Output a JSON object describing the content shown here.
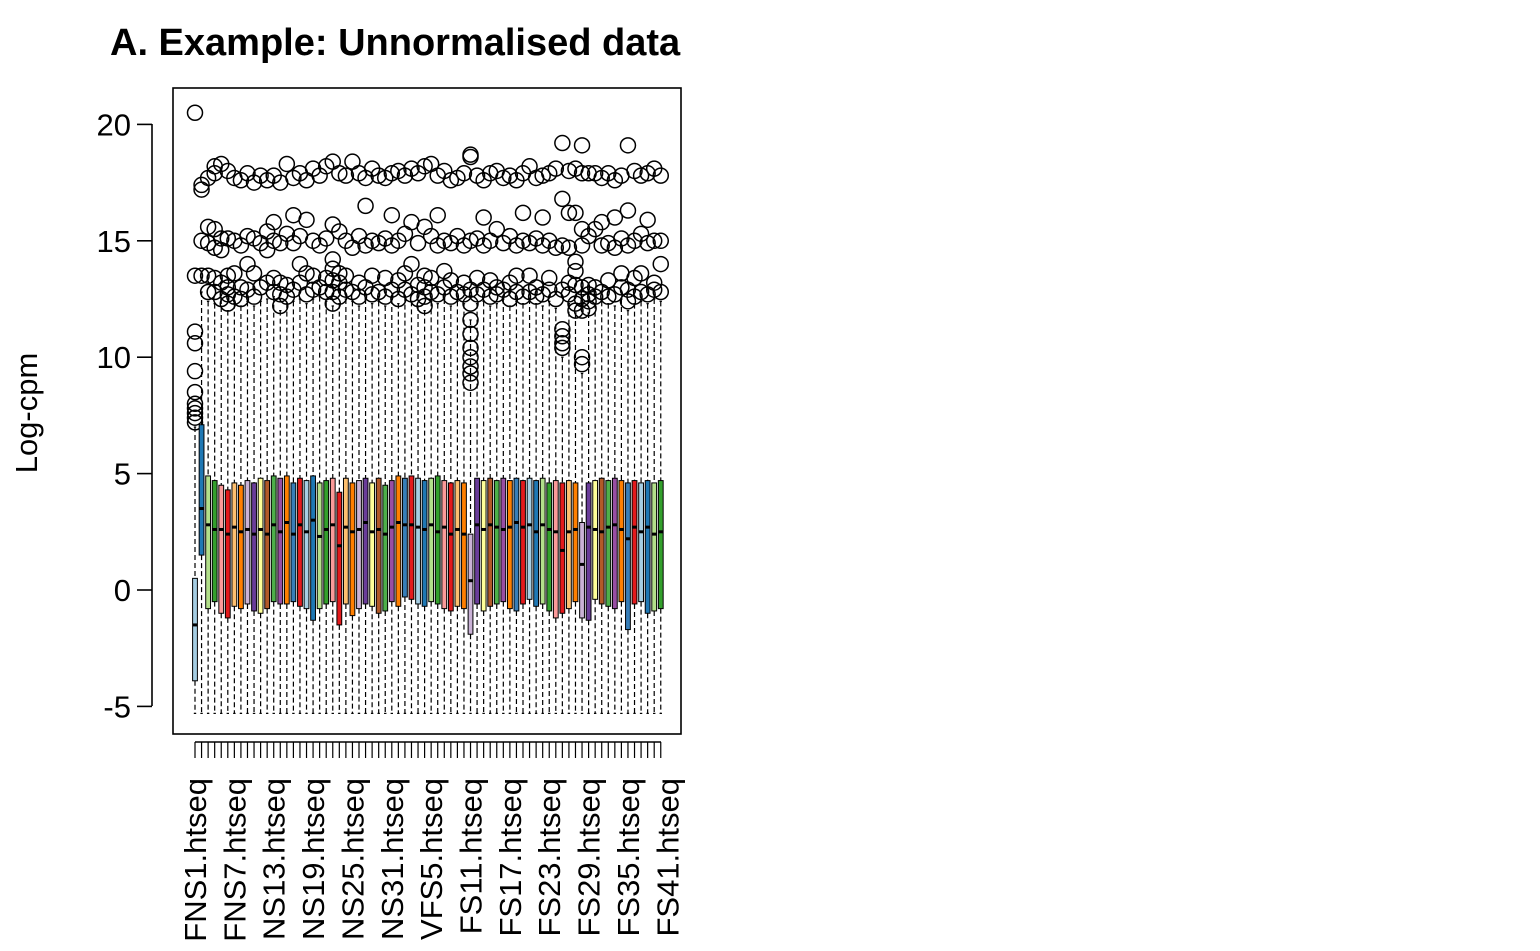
{
  "chart_data": {
    "type": "box",
    "title": "A. Example: Unnormalised data",
    "ylabel": "Log-cpm",
    "xlabel": "",
    "ylim": [
      -6.2,
      21.5
    ],
    "yticks": [
      -5,
      0,
      5,
      10,
      15,
      20
    ],
    "grid": false,
    "legend": "none",
    "visible_xtick_labels": [
      "FNS1.htseq",
      "FNS7.htseq",
      "NS13.htseq",
      "NS19.htseq",
      "NS25.htseq",
      "NS31.htseq",
      "VFS5.htseq",
      "FS11.htseq",
      "FS17.htseq",
      "FS23.htseq",
      "FS29.htseq",
      "FS35.htseq",
      "FS41.htseq"
    ],
    "palette": [
      "#A6CEE3",
      "#1F78B4",
      "#B2DF8A",
      "#33A02C",
      "#FB9A99",
      "#E31A1C",
      "#FDBF6F",
      "#FF7F00",
      "#CAB2D6",
      "#6A3D9A",
      "#FFFF99",
      "#B15928",
      "#4DAF4A",
      "#984EA3",
      "#FF7F00",
      "#377EB8",
      "#E41A1C"
    ],
    "n_samples": 72,
    "sample_stats": [
      {
        "min": -5.3,
        "q1": -3.9,
        "median": -1.5,
        "q3": 0.5,
        "max": 7.0,
        "outliers": [
          7.2,
          7.4,
          7.6,
          7.8,
          8.0,
          8.5,
          9.4,
          10.6,
          11.1,
          13.5,
          20.5
        ]
      },
      {
        "min": -5.3,
        "q1": 1.5,
        "median": 3.5,
        "q3": 7.1,
        "max": 12.8,
        "outliers": [
          13.5,
          15.0,
          17.2,
          17.4
        ]
      },
      {
        "min": -5.3,
        "q1": -0.8,
        "median": 2.8,
        "q3": 4.9,
        "max": 12.4,
        "outliers": [
          12.8,
          13.5,
          14.9,
          15.6,
          17.7
        ]
      },
      {
        "min": -5.3,
        "q1": -0.5,
        "median": 2.6,
        "q3": 4.7,
        "max": 12.3,
        "outliers": [
          12.8,
          13.4,
          14.7,
          15.5,
          17.9,
          18.2
        ]
      },
      {
        "min": -5.3,
        "q1": -1.0,
        "median": 2.6,
        "q3": 4.5,
        "max": 12.5,
        "outliers": [
          12.5,
          13.2,
          14.6,
          15.1,
          18.3
        ]
      },
      {
        "min": -5.3,
        "q1": -1.2,
        "median": 2.4,
        "q3": 4.3,
        "max": 12.0,
        "outliers": [
          12.3,
          12.7,
          13.0,
          13.5,
          15.1,
          18.0
        ]
      },
      {
        "min": -5.3,
        "q1": -0.7,
        "median": 2.7,
        "q3": 4.6,
        "max": 12.3,
        "outliers": [
          12.6,
          13.6,
          15.0,
          17.7
        ]
      },
      {
        "min": -5.3,
        "q1": -0.8,
        "median": 2.5,
        "q3": 4.5,
        "max": 12.2,
        "outliers": [
          12.5,
          13.0,
          14.8,
          17.6
        ]
      },
      {
        "min": -5.3,
        "q1": -0.6,
        "median": 2.6,
        "q3": 4.7,
        "max": 12.4,
        "outliers": [
          12.9,
          14.0,
          15.2,
          17.9
        ]
      },
      {
        "min": -5.3,
        "q1": -0.9,
        "median": 2.4,
        "q3": 4.6,
        "max": 12.2,
        "outliers": [
          12.6,
          13.6,
          15.1,
          17.5
        ]
      },
      {
        "min": -5.3,
        "q1": -1.0,
        "median": 2.6,
        "q3": 4.8,
        "max": 12.4,
        "outliers": [
          13.0,
          14.9,
          17.8
        ]
      },
      {
        "min": -5.3,
        "q1": -0.8,
        "median": 2.4,
        "q3": 4.7,
        "max": 12.5,
        "outliers": [
          13.2,
          14.6,
          15.4,
          17.6
        ]
      },
      {
        "min": -5.3,
        "q1": -0.5,
        "median": 2.8,
        "q3": 4.9,
        "max": 12.6,
        "outliers": [
          12.8,
          13.4,
          15.0,
          15.8,
          17.8
        ]
      },
      {
        "min": -5.3,
        "q1": -0.6,
        "median": 2.5,
        "q3": 4.8,
        "max": 12.0,
        "outliers": [
          12.2,
          12.7,
          13.2,
          14.9,
          17.5
        ]
      },
      {
        "min": -5.3,
        "q1": -0.6,
        "median": 2.9,
        "q3": 4.9,
        "max": 12.3,
        "outliers": [
          12.6,
          13.1,
          15.3,
          18.3
        ]
      },
      {
        "min": -5.3,
        "q1": -0.5,
        "median": 2.4,
        "q3": 4.6,
        "max": 12.4,
        "outliers": [
          12.9,
          14.9,
          16.1,
          17.7
        ]
      },
      {
        "min": -5.3,
        "q1": -0.7,
        "median": 2.8,
        "q3": 4.8,
        "max": 12.5,
        "outliers": [
          13.2,
          14.0,
          15.2,
          17.9
        ]
      },
      {
        "min": -5.3,
        "q1": -0.8,
        "median": 2.5,
        "q3": 4.7,
        "max": 12.3,
        "outliers": [
          12.7,
          13.6,
          15.9,
          17.6
        ]
      },
      {
        "min": -5.3,
        "q1": -1.3,
        "median": 3.0,
        "q3": 4.9,
        "max": 12.5,
        "outliers": [
          12.9,
          13.5,
          15.0,
          18.1
        ]
      },
      {
        "min": -5.3,
        "q1": -0.8,
        "median": 2.3,
        "q3": 4.6,
        "max": 12.6,
        "outliers": [
          13.0,
          14.8,
          17.8
        ]
      },
      {
        "min": -5.3,
        "q1": -0.6,
        "median": 2.6,
        "q3": 4.7,
        "max": 12.4,
        "outliers": [
          12.8,
          13.4,
          15.1,
          18.2
        ]
      },
      {
        "min": -5.3,
        "q1": -0.5,
        "median": 2.8,
        "q3": 4.8,
        "max": 12.2,
        "outliers": [
          12.3,
          12.8,
          13.3,
          13.8,
          14.2,
          15.7,
          18.4
        ]
      },
      {
        "min": -5.3,
        "q1": -1.5,
        "median": 1.9,
        "q3": 4.2,
        "max": 12.3,
        "outliers": [
          12.6,
          13.2,
          13.6,
          15.4,
          17.9
        ]
      },
      {
        "min": -5.3,
        "q1": -0.6,
        "median": 2.7,
        "q3": 4.8,
        "max": 12.5,
        "outliers": [
          12.9,
          13.5,
          15.0,
          17.8
        ]
      },
      {
        "min": -5.3,
        "q1": -1.1,
        "median": 2.5,
        "q3": 4.6,
        "max": 12.4,
        "outliers": [
          12.8,
          14.7,
          18.4
        ]
      },
      {
        "min": -5.3,
        "q1": -0.8,
        "median": 2.6,
        "q3": 4.7,
        "max": 12.2,
        "outliers": [
          12.6,
          13.2,
          15.2,
          17.9
        ]
      },
      {
        "min": -5.3,
        "q1": -0.6,
        "median": 2.9,
        "q3": 4.8,
        "max": 12.5,
        "outliers": [
          13.0,
          14.8,
          16.5,
          17.7
        ]
      },
      {
        "min": -5.3,
        "q1": -0.7,
        "median": 2.5,
        "q3": 4.6,
        "max": 12.3,
        "outliers": [
          12.7,
          13.5,
          15.0,
          18.1
        ]
      },
      {
        "min": -5.3,
        "q1": -1.0,
        "median": 2.6,
        "q3": 4.8,
        "max": 12.4,
        "outliers": [
          12.8,
          14.9,
          17.8
        ]
      },
      {
        "min": -5.3,
        "q1": -0.9,
        "median": 2.4,
        "q3": 4.5,
        "max": 12.2,
        "outliers": [
          12.6,
          13.4,
          15.1,
          17.7
        ]
      },
      {
        "min": -5.3,
        "q1": -0.5,
        "median": 2.7,
        "q3": 4.7,
        "max": 12.5,
        "outliers": [
          12.9,
          14.8,
          16.1,
          17.9
        ]
      },
      {
        "min": -5.3,
        "q1": -0.7,
        "median": 2.9,
        "q3": 4.9,
        "max": 12.3,
        "outliers": [
          12.5,
          13.3,
          15.0,
          18.0
        ]
      },
      {
        "min": -5.3,
        "q1": -0.3,
        "median": 2.8,
        "q3": 4.8,
        "max": 12.6,
        "outliers": [
          12.9,
          13.6,
          15.3,
          17.8
        ]
      },
      {
        "min": -5.3,
        "q1": -0.4,
        "median": 2.8,
        "q3": 4.9,
        "max": 12.4,
        "outliers": [
          12.7,
          14.0,
          15.8,
          18.1
        ]
      },
      {
        "min": -5.3,
        "q1": -0.6,
        "median": 2.7,
        "q3": 4.8,
        "max": 12.2,
        "outliers": [
          12.5,
          13.1,
          14.9,
          17.9
        ]
      },
      {
        "min": -5.3,
        "q1": -0.7,
        "median": 2.6,
        "q3": 4.7,
        "max": 12.0,
        "outliers": [
          12.2,
          12.6,
          13.0,
          13.5,
          15.6,
          18.2
        ]
      },
      {
        "min": -5.3,
        "q1": -0.5,
        "median": 2.8,
        "q3": 4.8,
        "max": 12.4,
        "outliers": [
          12.8,
          13.4,
          15.2,
          18.3
        ]
      },
      {
        "min": -5.3,
        "q1": -0.6,
        "median": 2.5,
        "q3": 4.9,
        "max": 12.3,
        "outliers": [
          12.7,
          14.8,
          16.1,
          17.8
        ]
      },
      {
        "min": -5.3,
        "q1": -0.8,
        "median": 2.7,
        "q3": 4.7,
        "max": 12.5,
        "outliers": [
          13.0,
          13.7,
          15.0,
          18.0
        ]
      },
      {
        "min": -5.3,
        "q1": -0.9,
        "median": 2.4,
        "q3": 4.6,
        "max": 12.2,
        "outliers": [
          12.6,
          13.3,
          14.9,
          17.6
        ]
      },
      {
        "min": -5.3,
        "q1": -0.7,
        "median": 2.6,
        "q3": 4.7,
        "max": 12.4,
        "outliers": [
          12.8,
          15.2,
          17.7
        ]
      },
      {
        "min": -5.3,
        "q1": -0.8,
        "median": 2.4,
        "q3": 4.6,
        "max": 12.3,
        "outliers": [
          12.7,
          13.2,
          14.8,
          17.9
        ]
      },
      {
        "min": -5.3,
        "q1": -1.9,
        "median": 0.4,
        "q3": 2.4,
        "max": 11.6,
        "outliers": [
          8.9,
          9.3,
          9.6,
          10.0,
          10.4,
          11.0,
          11.6,
          12.3,
          12.9,
          15.0,
          18.6,
          18.7
        ]
      },
      {
        "min": -5.3,
        "q1": -0.6,
        "median": 2.8,
        "q3": 4.8,
        "max": 12.3,
        "outliers": [
          12.7,
          13.4,
          15.1,
          17.8
        ]
      },
      {
        "min": -5.3,
        "q1": -0.9,
        "median": 2.6,
        "q3": 4.7,
        "max": 12.4,
        "outliers": [
          12.9,
          14.8,
          16.0,
          17.6
        ]
      },
      {
        "min": -5.3,
        "q1": -0.7,
        "median": 2.8,
        "q3": 4.8,
        "max": 12.2,
        "outliers": [
          12.6,
          13.3,
          15.0,
          17.9
        ]
      },
      {
        "min": -5.3,
        "q1": -0.6,
        "median": 2.7,
        "q3": 4.7,
        "max": 12.3,
        "outliers": [
          12.7,
          13.0,
          15.5,
          18.0
        ]
      },
      {
        "min": -5.3,
        "q1": -0.5,
        "median": 2.6,
        "q3": 4.8,
        "max": 12.5,
        "outliers": [
          12.9,
          14.9,
          17.7
        ]
      },
      {
        "min": -5.3,
        "q1": -0.8,
        "median": 2.7,
        "q3": 4.7,
        "max": 12.2,
        "outliers": [
          12.5,
          13.2,
          15.2,
          17.8
        ]
      },
      {
        "min": -5.3,
        "q1": -0.9,
        "median": 2.9,
        "q3": 4.8,
        "max": 12.4,
        "outliers": [
          12.8,
          13.5,
          14.8,
          17.6
        ]
      },
      {
        "min": -5.3,
        "q1": -0.6,
        "median": 2.7,
        "q3": 4.7,
        "max": 12.3,
        "outliers": [
          12.6,
          15.0,
          16.2,
          17.9
        ]
      },
      {
        "min": -5.3,
        "q1": -0.4,
        "median": 2.8,
        "q3": 4.8,
        "max": 12.5,
        "outliers": [
          12.8,
          13.5,
          14.9,
          18.2
        ]
      },
      {
        "min": -5.3,
        "q1": -0.7,
        "median": 2.5,
        "q3": 4.7,
        "max": 12.3,
        "outliers": [
          12.6,
          13.0,
          15.1,
          17.7
        ]
      },
      {
        "min": -5.3,
        "q1": -0.6,
        "median": 2.8,
        "q3": 4.8,
        "max": 12.2,
        "outliers": [
          12.7,
          14.8,
          16.0,
          17.8
        ]
      },
      {
        "min": -5.3,
        "q1": -0.9,
        "median": 2.6,
        "q3": 4.6,
        "max": 12.4,
        "outliers": [
          12.9,
          13.4,
          15.0,
          17.9
        ]
      },
      {
        "min": -5.3,
        "q1": -1.2,
        "median": 2.5,
        "q3": 4.7,
        "max": 12.1,
        "outliers": [
          12.5,
          14.7,
          18.1
        ]
      },
      {
        "min": -5.3,
        "q1": -1.0,
        "median": 1.7,
        "q3": 4.6,
        "max": 10.0,
        "outliers": [
          10.4,
          10.6,
          10.9,
          11.2,
          12.9,
          14.8,
          16.8,
          19.2
        ]
      },
      {
        "min": -5.3,
        "q1": -0.8,
        "median": 2.5,
        "q3": 4.7,
        "max": 12.3,
        "outliers": [
          12.7,
          13.2,
          14.7,
          16.2,
          18.0
        ]
      },
      {
        "min": -5.3,
        "q1": -0.5,
        "median": 2.6,
        "q3": 4.6,
        "max": 11.9,
        "outliers": [
          12.0,
          12.3,
          13.1,
          13.7,
          14.1,
          16.2,
          18.1
        ]
      },
      {
        "min": -5.3,
        "q1": -1.2,
        "median": 1.1,
        "q3": 2.9,
        "max": 9.3,
        "outliers": [
          9.7,
          10.0,
          12.0,
          12.5,
          13.0,
          14.8,
          15.5,
          17.9,
          19.1
        ]
      },
      {
        "min": -5.3,
        "q1": -1.3,
        "median": 2.7,
        "q3": 4.6,
        "max": 11.9,
        "outliers": [
          12.1,
          12.4,
          12.7,
          13.1,
          15.2,
          17.9
        ]
      },
      {
        "min": -5.3,
        "q1": -0.4,
        "median": 2.6,
        "q3": 4.7,
        "max": 12.3,
        "outliers": [
          12.6,
          13.0,
          15.5,
          17.9
        ]
      },
      {
        "min": -5.3,
        "q1": -0.6,
        "median": 2.5,
        "q3": 4.8,
        "max": 12.4,
        "outliers": [
          12.8,
          14.8,
          15.8,
          17.7
        ]
      },
      {
        "min": -5.3,
        "q1": -0.7,
        "median": 2.7,
        "q3": 4.7,
        "max": 12.3,
        "outliers": [
          12.6,
          13.3,
          14.9,
          17.9
        ]
      },
      {
        "min": -5.3,
        "q1": -0.8,
        "median": 2.8,
        "q3": 4.8,
        "max": 12.2,
        "outliers": [
          12.7,
          14.7,
          16.0,
          17.6
        ]
      },
      {
        "min": -5.3,
        "q1": -0.5,
        "median": 2.6,
        "q3": 4.7,
        "max": 12.5,
        "outliers": [
          13.0,
          13.6,
          15.1,
          17.8
        ]
      },
      {
        "min": -5.3,
        "q1": -1.7,
        "median": 2.2,
        "q3": 4.6,
        "max": 12.0,
        "outliers": [
          12.4,
          12.9,
          14.8,
          16.3,
          19.1
        ]
      },
      {
        "min": -5.3,
        "q1": -0.6,
        "median": 2.7,
        "q3": 4.7,
        "max": 12.3,
        "outliers": [
          12.6,
          13.4,
          15.0,
          18.0
        ]
      },
      {
        "min": -5.3,
        "q1": -0.5,
        "median": 2.5,
        "q3": 4.6,
        "max": 12.4,
        "outliers": [
          12.8,
          13.6,
          15.3,
          17.8
        ]
      },
      {
        "min": -5.3,
        "q1": -1.0,
        "median": 2.7,
        "q3": 4.7,
        "max": 12.3,
        "outliers": [
          12.7,
          14.9,
          15.9,
          17.9
        ]
      },
      {
        "min": -5.3,
        "q1": -0.9,
        "median": 2.4,
        "q3": 4.6,
        "max": 12.5,
        "outliers": [
          12.9,
          13.2,
          15.0,
          18.1
        ]
      },
      {
        "min": -5.3,
        "q1": -0.8,
        "median": 2.5,
        "q3": 4.7,
        "max": 12.4,
        "outliers": [
          12.8,
          14.0,
          15.0,
          17.8
        ]
      }
    ]
  }
}
